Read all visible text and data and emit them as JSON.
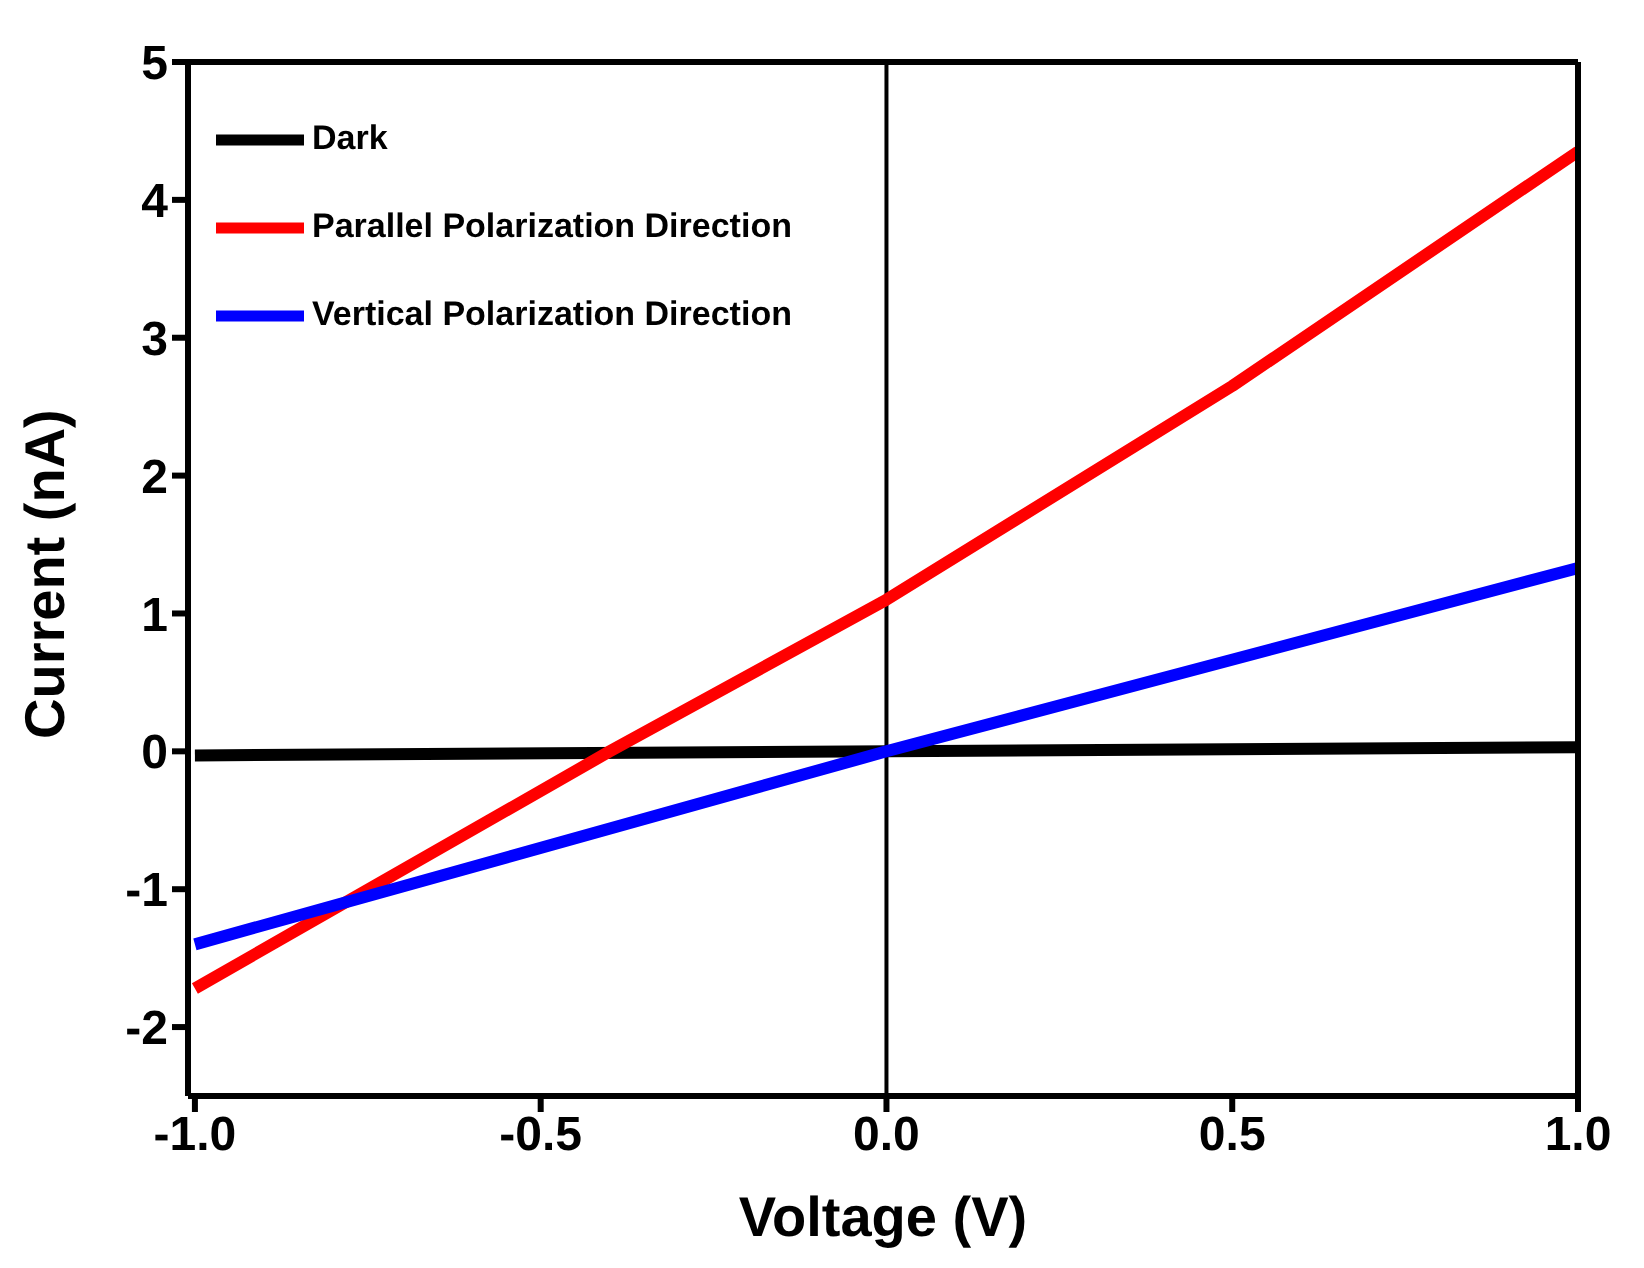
{
  "chart_data": {
    "type": "line",
    "xlabel": "Voltage (V)",
    "ylabel": "Current (nA)",
    "xlim": [
      -1.01,
      1.0
    ],
    "ylim": [
      -2.5,
      5
    ],
    "xticks": [
      {
        "value": -1,
        "label": "-1.0"
      },
      -0.5,
      {
        "value": 0,
        "label": "0.0"
      },
      0.5,
      {
        "value": 1,
        "label": "1.0"
      }
    ],
    "yticks": [
      -2,
      -1,
      0,
      1,
      2,
      3,
      4,
      5
    ],
    "series": [
      {
        "name": "Dark",
        "color": "#000000",
        "x": [
          -1,
          1
        ],
        "values": [
          -0.03,
          0.03
        ]
      },
      {
        "name": "Parallel Polarization Direction",
        "color": "#ff0000",
        "x": [
          -1,
          -0.4,
          0,
          0.5,
          1
        ],
        "values": [
          -1.72,
          0,
          1.1,
          2.65,
          4.35
        ]
      },
      {
        "name": "Vertical Polarization Direction",
        "color": "#0000ff",
        "x": [
          -1,
          0,
          1
        ],
        "values": [
          -1.4,
          0,
          1.33
        ]
      }
    ],
    "ref_lines": [
      {
        "axis": "x",
        "value": 0,
        "color": "#000000"
      }
    ],
    "grid": false,
    "legend": "top left",
    "marker": "none",
    "line_style": "solid"
  }
}
